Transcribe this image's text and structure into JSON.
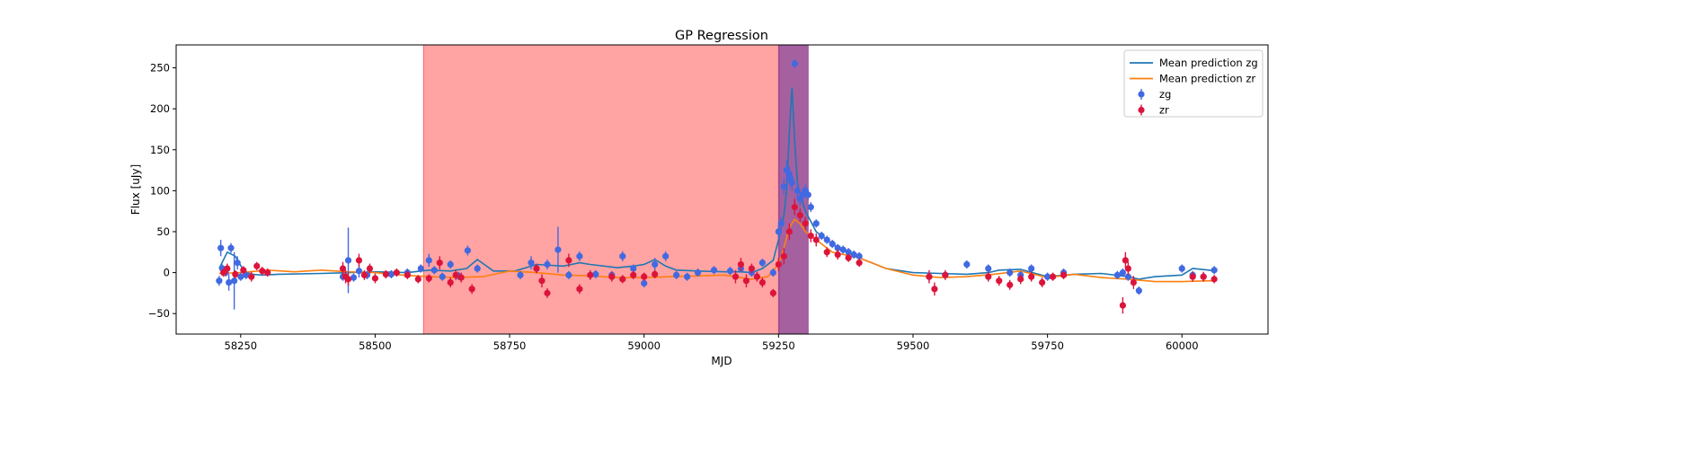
{
  "chart_data": {
    "type": "scatter",
    "title": "GP Regression",
    "xlabel": "MJD",
    "ylabel": "Flux [uJy]",
    "xlim": [
      58130,
      60160
    ],
    "ylim": [
      -75,
      278
    ],
    "xticks": [
      58250,
      58500,
      58750,
      59000,
      59250,
      59500,
      59750,
      60000
    ],
    "yticks": [
      -50,
      0,
      50,
      100,
      150,
      200,
      250
    ],
    "legend_position": "top-right",
    "colors": {
      "mean_zg": "#1f77b4",
      "mean_zr": "#ff7f0e",
      "zg": "#4169e1",
      "zr": "#dc143c",
      "span_red": "#ff6666",
      "span_purple": "#9b4f96"
    },
    "shaded_regions": [
      {
        "x0": 58590,
        "x1": 59252,
        "color": "red"
      },
      {
        "x0": 59250,
        "x1": 59305,
        "color": "purple"
      }
    ],
    "series": [
      {
        "name": "Mean prediction zg",
        "kind": "line",
        "x": [
          58210,
          58225,
          58240,
          58255,
          58270,
          58290,
          58320,
          58400,
          58450,
          58500,
          58560,
          58600,
          58640,
          58670,
          58690,
          58720,
          58760,
          58800,
          58850,
          58880,
          58900,
          58950,
          58980,
          59000,
          59020,
          59040,
          59060,
          59100,
          59150,
          59180,
          59200,
          59220,
          59240,
          59250,
          59260,
          59265,
          59270,
          59275,
          59280,
          59285,
          59290,
          59300,
          59320,
          59350,
          59400,
          59450,
          59500,
          59550,
          59600,
          59640,
          59660,
          59700,
          59750,
          59800,
          59850,
          59900,
          59920,
          59950,
          60000,
          60020,
          60050,
          60060
        ],
        "y": [
          5,
          25,
          20,
          3,
          -2,
          -3,
          -2,
          -1,
          0,
          1,
          0,
          3,
          2,
          5,
          16,
          2,
          2,
          10,
          8,
          12,
          10,
          6,
          8,
          10,
          16,
          8,
          3,
          2,
          1,
          1,
          0,
          5,
          15,
          40,
          70,
          100,
          170,
          226,
          160,
          110,
          95,
          75,
          50,
          35,
          18,
          5,
          0,
          -1,
          -2,
          0,
          3,
          4,
          -5,
          -2,
          -1,
          -5,
          -8,
          -5,
          -3,
          5,
          3,
          2
        ]
      },
      {
        "name": "Mean prediction zr",
        "kind": "line",
        "x": [
          58210,
          58250,
          58300,
          58350,
          58400,
          58450,
          58500,
          58550,
          58600,
          58650,
          58700,
          58750,
          58800,
          58850,
          58900,
          58950,
          59000,
          59050,
          59100,
          59150,
          59200,
          59230,
          59250,
          59260,
          59270,
          59280,
          59290,
          59300,
          59350,
          59400,
          59450,
          59500,
          59550,
          59600,
          59650,
          59700,
          59750,
          59800,
          59850,
          59900,
          59950,
          60000,
          60050,
          60060
        ],
        "y": [
          -1,
          0,
          3,
          1,
          3,
          1,
          0,
          -3,
          -5,
          -6,
          -5,
          2,
          0,
          -3,
          -4,
          -6,
          -6,
          -5,
          -4,
          -3,
          -8,
          -5,
          10,
          30,
          55,
          65,
          60,
          50,
          25,
          18,
          5,
          -3,
          -6,
          -5,
          -2,
          2,
          -6,
          -2,
          -6,
          -8,
          -11,
          -11,
          -10,
          -10
        ]
      },
      {
        "name": "zg",
        "kind": "points",
        "x": [
          58210,
          58213,
          58216,
          58222,
          58228,
          58232,
          58238,
          58244,
          58250,
          58260,
          58440,
          58450,
          58460,
          58470,
          58485,
          58530,
          58560,
          58585,
          58600,
          58610,
          58625,
          58640,
          58655,
          58672,
          58690,
          58770,
          58790,
          58800,
          58820,
          58840,
          58860,
          58880,
          58910,
          58940,
          58960,
          58980,
          59000,
          59020,
          59040,
          59060,
          59080,
          59100,
          59130,
          59160,
          59180,
          59200,
          59220,
          59240,
          59250,
          59255,
          59260,
          59265,
          59270,
          59272,
          59275,
          59280,
          59285,
          59290,
          59295,
          59300,
          59305,
          59310,
          59320,
          59330,
          59340,
          59350,
          59360,
          59370,
          59380,
          59390,
          59400,
          59530,
          59560,
          59600,
          59640,
          59680,
          59700,
          59720,
          59750,
          59780,
          59880,
          59890,
          59900,
          59920,
          60000,
          60020,
          60040,
          60060
        ],
        "y": [
          -10,
          30,
          5,
          0,
          -12,
          30,
          -10,
          12,
          -5,
          -3,
          -5,
          15,
          -6,
          2,
          -3,
          -2,
          0,
          5,
          15,
          3,
          -5,
          10,
          -4,
          27,
          5,
          -3,
          12,
          5,
          10,
          28,
          -3,
          20,
          -2,
          -3,
          20,
          5,
          -13,
          10,
          20,
          -3,
          -5,
          0,
          3,
          2,
          5,
          0,
          12,
          0,
          50,
          60,
          105,
          125,
          120,
          115,
          110,
          255,
          100,
          90,
          95,
          100,
          95,
          80,
          60,
          45,
          40,
          35,
          30,
          28,
          25,
          22,
          20,
          -5,
          -3,
          10,
          5,
          0,
          -3,
          5,
          -5,
          0,
          -3,
          0,
          -5,
          -22,
          5,
          -3,
          -5,
          3
        ],
        "err": [
          6,
          10,
          5,
          5,
          10,
          6,
          35,
          8,
          5,
          5,
          5,
          40,
          5,
          8,
          5,
          5,
          5,
          5,
          8,
          5,
          5,
          5,
          5,
          6,
          5,
          5,
          8,
          5,
          6,
          28,
          5,
          6,
          5,
          5,
          6,
          5,
          5,
          8,
          6,
          5,
          5,
          5,
          5,
          5,
          5,
          5,
          5,
          5,
          8,
          8,
          10,
          12,
          10,
          10,
          10,
          5,
          10,
          8,
          8,
          8,
          6,
          6,
          5,
          5,
          5,
          5,
          5,
          5,
          5,
          5,
          5,
          5,
          5,
          5,
          5,
          5,
          5,
          5,
          5,
          5,
          5,
          5,
          5,
          5,
          5,
          5,
          5,
          5
        ]
      },
      {
        "name": "zr",
        "kind": "points",
        "x": [
          58218,
          58225,
          58240,
          58255,
          58270,
          58280,
          58290,
          58300,
          58440,
          58445,
          58450,
          58470,
          58480,
          58490,
          58500,
          58520,
          58540,
          58560,
          58580,
          58600,
          58620,
          58640,
          58650,
          58660,
          58680,
          58800,
          58810,
          58820,
          58860,
          58880,
          58900,
          58940,
          58960,
          58980,
          59000,
          59020,
          59170,
          59180,
          59190,
          59200,
          59210,
          59220,
          59240,
          59250,
          59260,
          59270,
          59280,
          59290,
          59300,
          59310,
          59320,
          59340,
          59360,
          59380,
          59400,
          59530,
          59540,
          59560,
          59640,
          59660,
          59680,
          59700,
          59720,
          59740,
          59760,
          59780,
          59890,
          59895,
          59900,
          59910,
          60020,
          60040,
          60060
        ],
        "y": [
          0,
          5,
          -2,
          3,
          -5,
          8,
          2,
          0,
          5,
          -5,
          -8,
          15,
          -3,
          5,
          -7,
          -2,
          0,
          -3,
          -8,
          -7,
          12,
          -12,
          -3,
          -6,
          -20,
          5,
          -10,
          -25,
          15,
          -20,
          -3,
          -5,
          -8,
          -3,
          -5,
          -2,
          -5,
          10,
          -10,
          5,
          -5,
          -12,
          -25,
          10,
          20,
          50,
          80,
          70,
          60,
          45,
          40,
          25,
          22,
          18,
          12,
          -5,
          -20,
          -3,
          -5,
          -10,
          -15,
          -8,
          -5,
          -12,
          -5,
          -3,
          -40,
          15,
          5,
          -12,
          -5,
          -5,
          -8
        ],
        "err": [
          5,
          6,
          5,
          5,
          6,
          5,
          5,
          5,
          8,
          8,
          8,
          8,
          6,
          6,
          6,
          5,
          5,
          5,
          5,
          5,
          8,
          6,
          6,
          6,
          6,
          6,
          8,
          6,
          8,
          6,
          6,
          6,
          5,
          5,
          5,
          5,
          8,
          8,
          8,
          6,
          6,
          6,
          5,
          8,
          10,
          10,
          10,
          8,
          8,
          8,
          8,
          6,
          6,
          5,
          5,
          8,
          8,
          6,
          6,
          6,
          6,
          6,
          6,
          6,
          5,
          5,
          10,
          10,
          8,
          8,
          6,
          6,
          5
        ]
      }
    ]
  }
}
